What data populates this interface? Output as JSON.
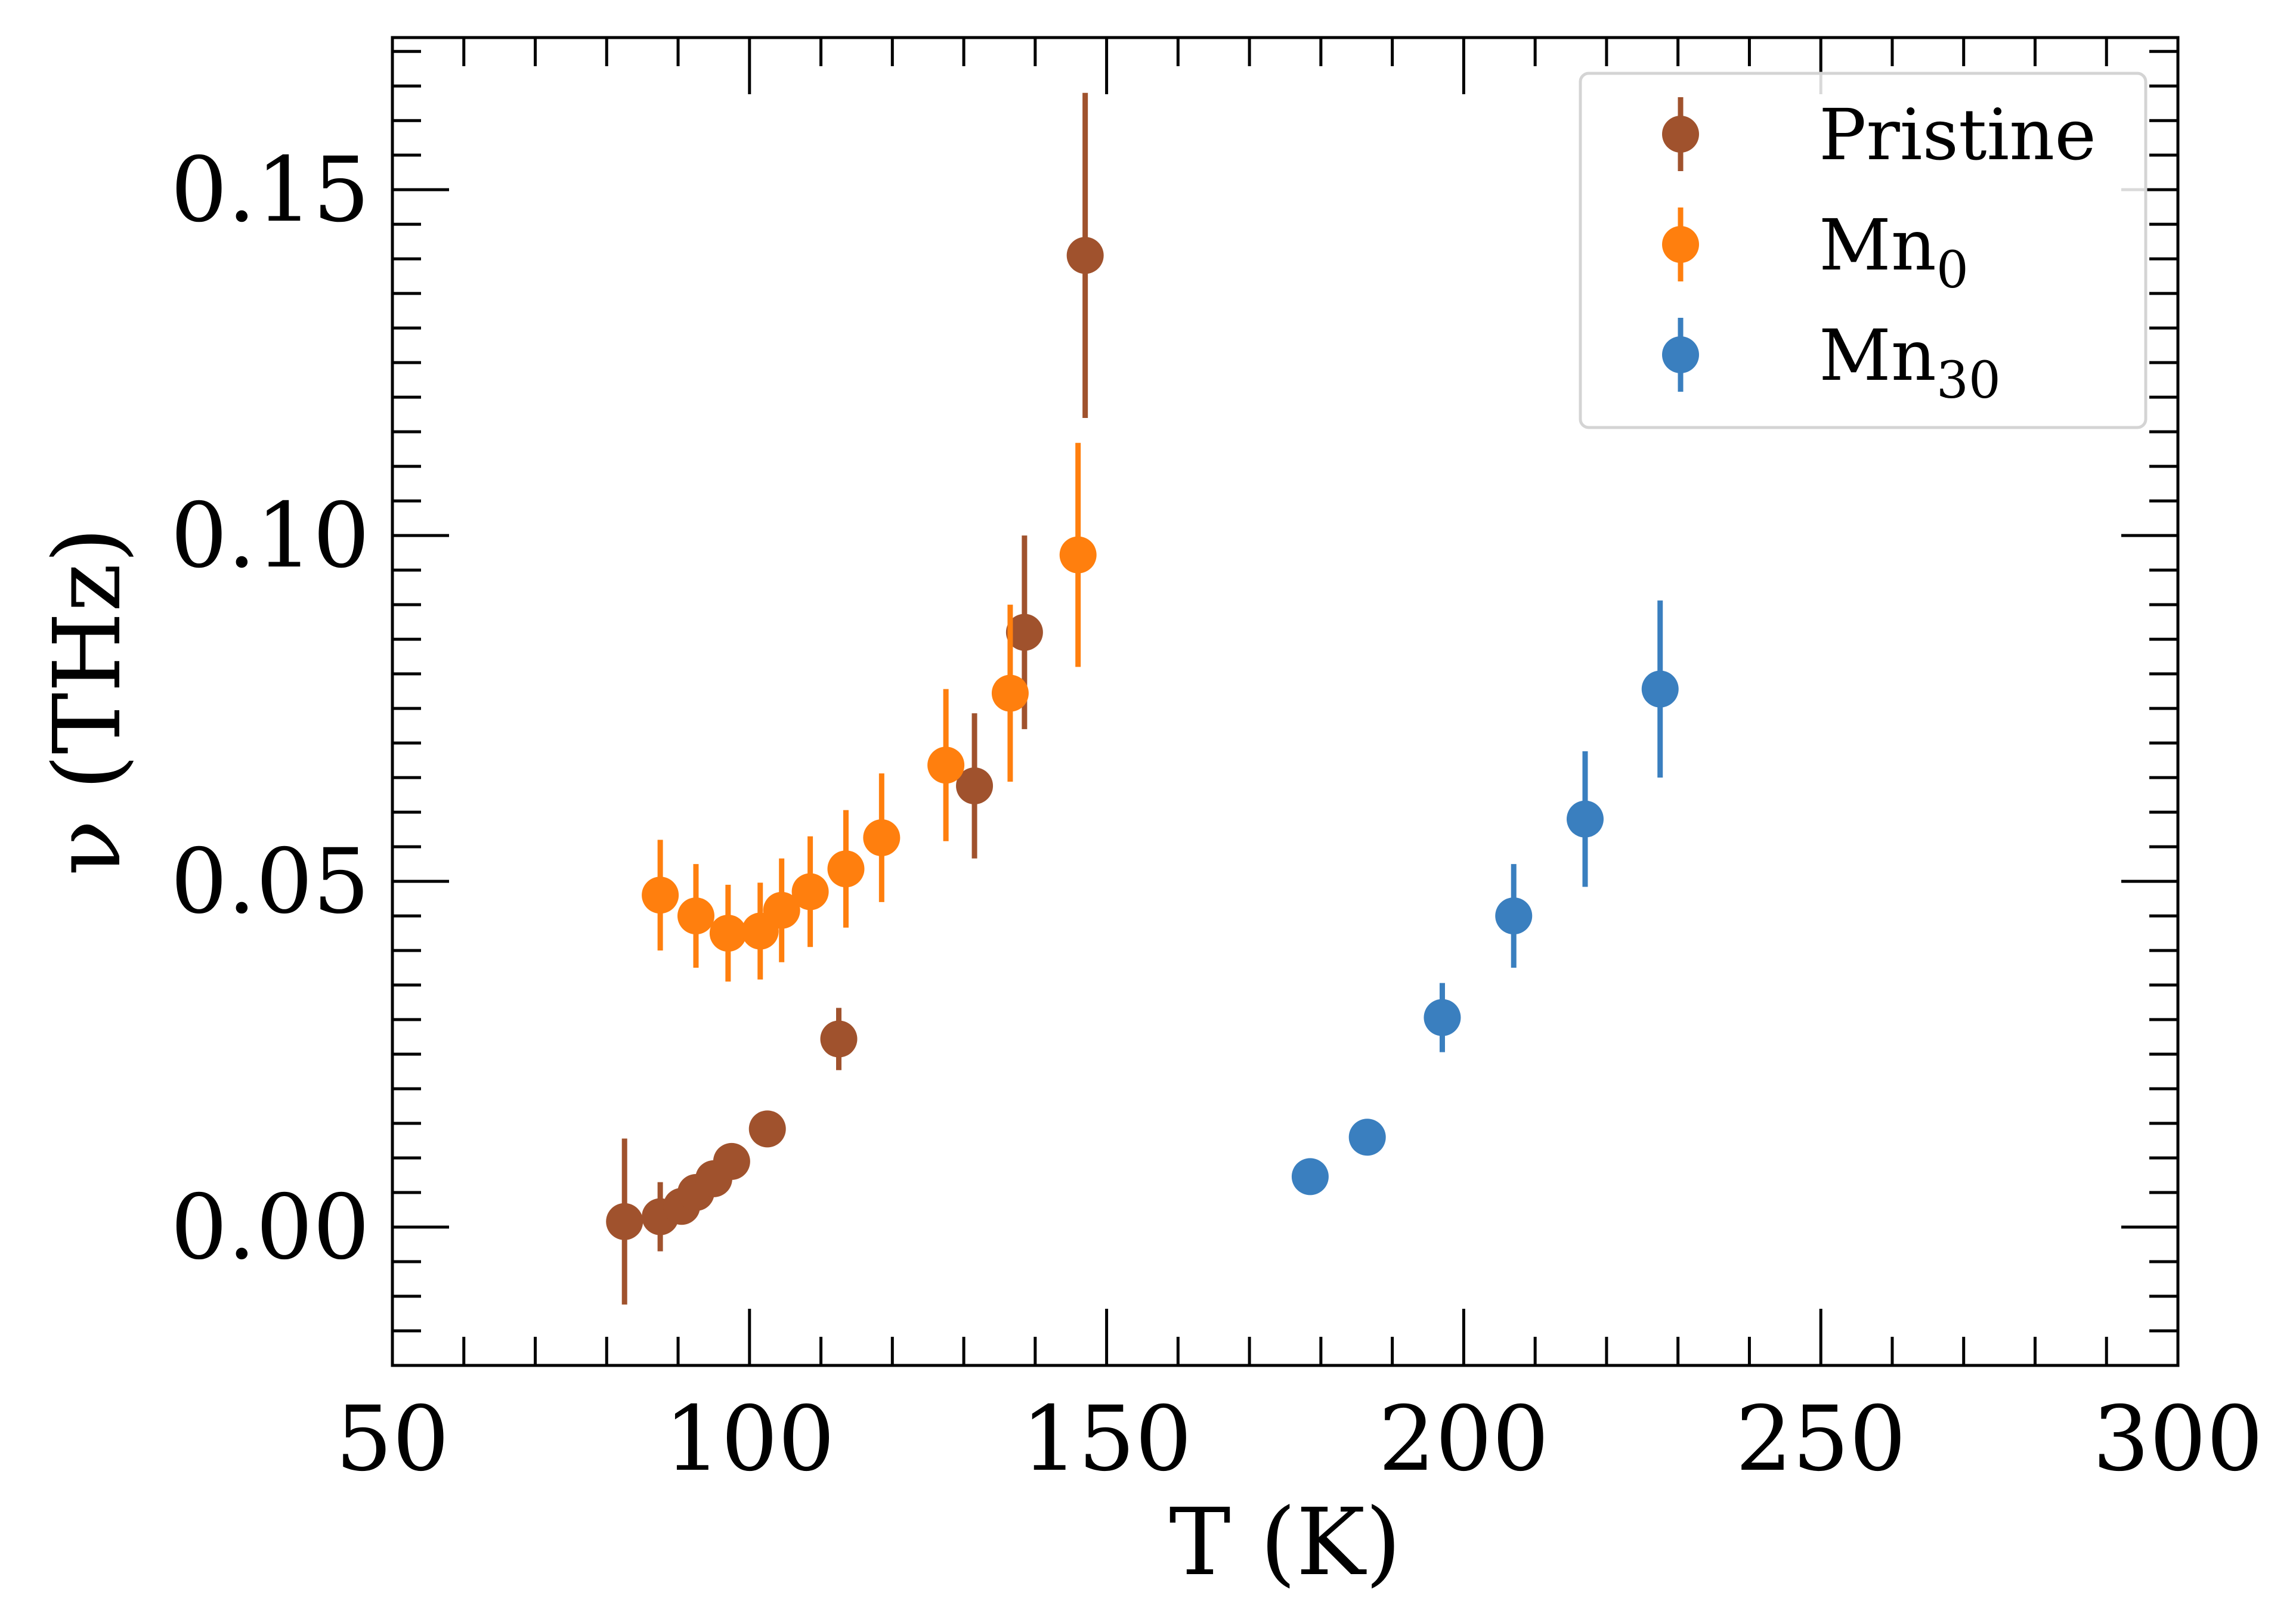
{
  "chart_data": {
    "type": "scatter",
    "title": "",
    "xlabel": "T (K)",
    "ylabel": "ν (THz)",
    "xlim": [
      50,
      300
    ],
    "ylim": [
      -0.02,
      0.172
    ],
    "xticks": [
      "50",
      "100",
      "150",
      "200",
      "250",
      "300"
    ],
    "yticks": [
      "0.00",
      "0.05",
      "0.10",
      "0.15"
    ],
    "grid": false,
    "legend_position": "top-right",
    "series": [
      {
        "name": "Pristine",
        "legend_label": {
          "main": "Pristine",
          "sub": ""
        },
        "color": "#a0522d",
        "points": [
          {
            "x": 82.5,
            "y": 0.0008,
            "err": 0.012
          },
          {
            "x": 87.5,
            "y": 0.0015,
            "err": 0.005
          },
          {
            "x": 90.5,
            "y": 0.003,
            "err": 0.0
          },
          {
            "x": 92.5,
            "y": 0.005,
            "err": 0.0
          },
          {
            "x": 95.0,
            "y": 0.007,
            "err": 0.0
          },
          {
            "x": 97.5,
            "y": 0.0095,
            "err": 0.0
          },
          {
            "x": 102.5,
            "y": 0.0142,
            "err": 0.0
          },
          {
            "x": 112.5,
            "y": 0.0272,
            "err": 0.0045
          },
          {
            "x": 131.5,
            "y": 0.0638,
            "err": 0.0105
          },
          {
            "x": 138.5,
            "y": 0.086,
            "err": 0.014
          },
          {
            "x": 147.0,
            "y": 0.1405,
            "err": 0.0235
          }
        ]
      },
      {
        "name": "Mn0",
        "legend_label": {
          "main": "Mn",
          "sub": "0"
        },
        "color": "#ff7f0e",
        "points": [
          {
            "x": 87.5,
            "y": 0.048,
            "err": 0.008
          },
          {
            "x": 92.5,
            "y": 0.045,
            "err": 0.0075
          },
          {
            "x": 97.0,
            "y": 0.0425,
            "err": 0.007
          },
          {
            "x": 101.5,
            "y": 0.0428,
            "err": 0.007
          },
          {
            "x": 104.5,
            "y": 0.0458,
            "err": 0.0075
          },
          {
            "x": 108.5,
            "y": 0.0485,
            "err": 0.008
          },
          {
            "x": 113.5,
            "y": 0.0518,
            "err": 0.0085
          },
          {
            "x": 118.5,
            "y": 0.0563,
            "err": 0.0093
          },
          {
            "x": 127.5,
            "y": 0.0668,
            "err": 0.011
          },
          {
            "x": 136.5,
            "y": 0.0772,
            "err": 0.0128
          },
          {
            "x": 146.0,
            "y": 0.0972,
            "err": 0.0162
          }
        ]
      },
      {
        "name": "Mn30",
        "legend_label": {
          "main": "Mn",
          "sub": "30"
        },
        "color": "#3a7fbf",
        "points": [
          {
            "x": 178.5,
            "y": 0.0073,
            "err": 0.0
          },
          {
            "x": 186.5,
            "y": 0.013,
            "err": 0.0
          },
          {
            "x": 197.0,
            "y": 0.0303,
            "err": 0.005
          },
          {
            "x": 207.0,
            "y": 0.045,
            "err": 0.0075
          },
          {
            "x": 217.0,
            "y": 0.059,
            "err": 0.0098
          },
          {
            "x": 227.5,
            "y": 0.0778,
            "err": 0.0128
          }
        ]
      }
    ]
  }
}
